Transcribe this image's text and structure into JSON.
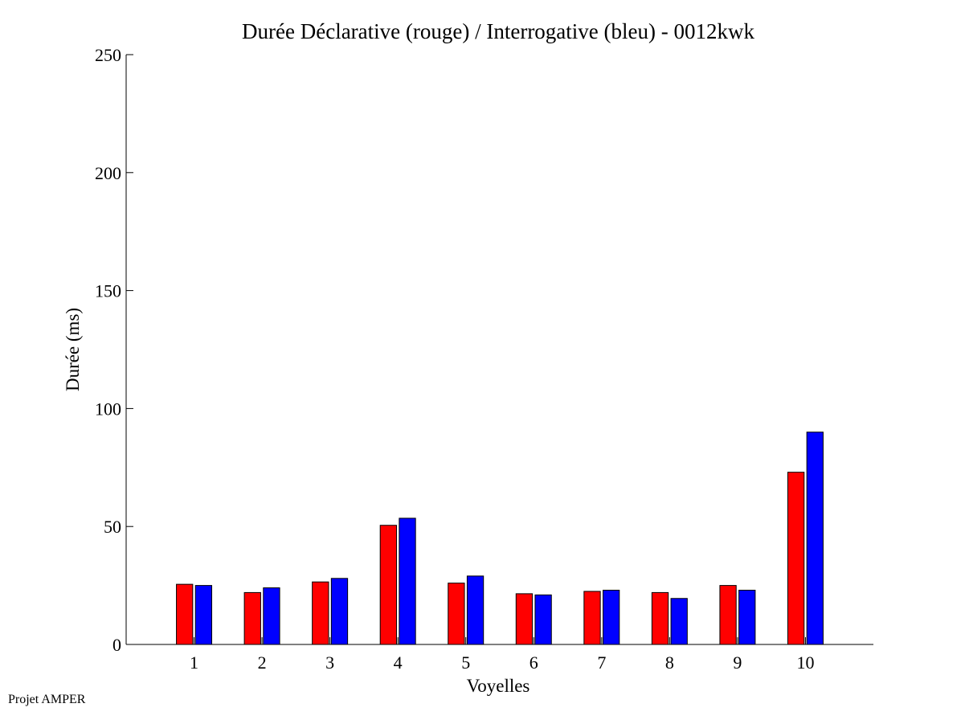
{
  "footer": {
    "text": "Projet AMPER"
  },
  "chart_data": {
    "type": "bar",
    "title": "Durée Déclarative (rouge) / Interrogative (bleu) - 0012kwk",
    "xlabel": "Voyelles",
    "ylabel": "Durée (ms)",
    "categories": [
      "1",
      "2",
      "3",
      "4",
      "5",
      "6",
      "7",
      "8",
      "9",
      "10"
    ],
    "series": [
      {
        "color": "#ff0000",
        "values": [
          25.5,
          22,
          26.5,
          50.5,
          26,
          21.5,
          22.5,
          22,
          25,
          73
        ]
      },
      {
        "color": "#0000ff",
        "values": [
          25,
          24,
          28,
          53.5,
          29,
          21,
          23,
          19.5,
          23,
          90
        ]
      }
    ],
    "ylim": [
      0,
      250
    ],
    "yticks": [
      0,
      50,
      100,
      150,
      200,
      250
    ],
    "xlim": [
      0,
      11
    ],
    "grid": false,
    "legend": "none"
  }
}
